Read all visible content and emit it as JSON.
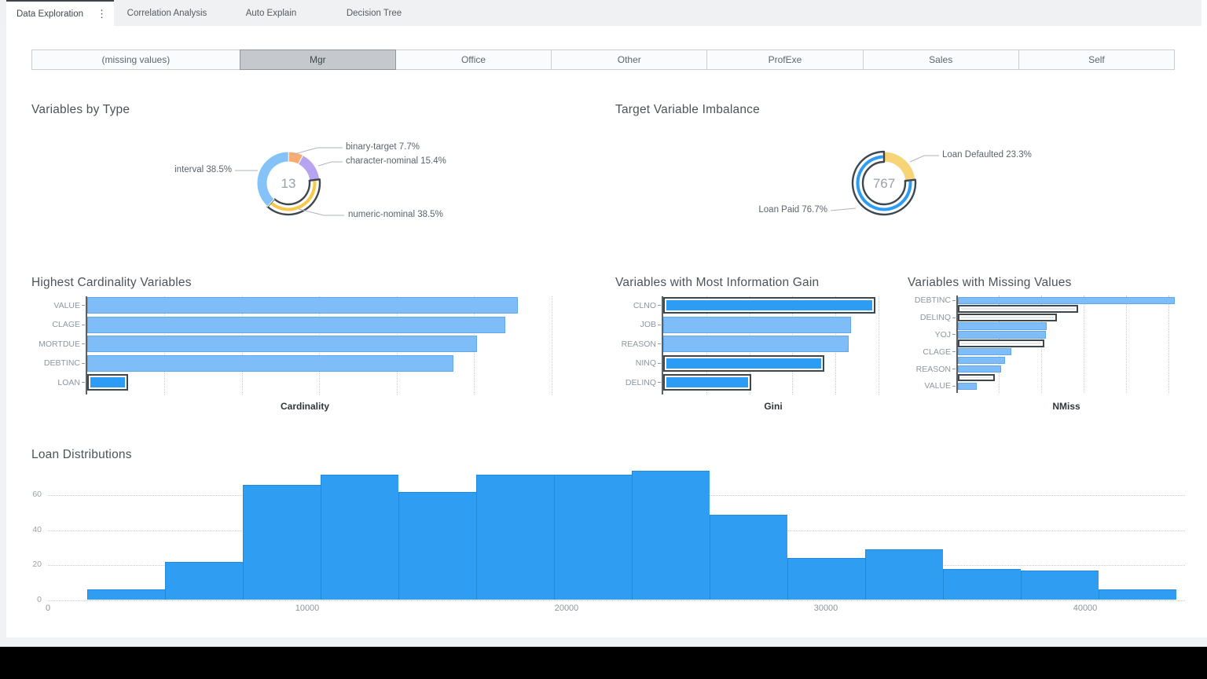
{
  "tabs": [
    {
      "label": "Data Exploration",
      "active": true,
      "has_menu": true
    },
    {
      "label": "Correlation Analysis",
      "active": false
    },
    {
      "label": "Auto Explain",
      "active": false
    },
    {
      "label": "Decision Tree",
      "active": false
    }
  ],
  "filter_buttons": [
    {
      "label": "(missing values)",
      "selected": false
    },
    {
      "label": "Mgr",
      "selected": true
    },
    {
      "label": "Office",
      "selected": false
    },
    {
      "label": "Other",
      "selected": false
    },
    {
      "label": "ProfExe",
      "selected": false
    },
    {
      "label": "Sales",
      "selected": false
    },
    {
      "label": "Self",
      "selected": false
    }
  ],
  "colors": {
    "light_blue_bar": "#7EBDF7",
    "selected_blue": "#2D9CF4",
    "selection_outline": "#3F474E",
    "highlight_gray_fill": "#E4E6E8",
    "histogram_blue": "#2F9DF1",
    "pie_orange": "#F8AC71",
    "pie_purple": "#B6A3F2",
    "pie_yellow": "#F8C74B",
    "pie_light_blue": "#85C2F7",
    "pie_pale_yellow": "#F8D478"
  },
  "chart_data": [
    {
      "id": "variables-by-type",
      "type": "pie",
      "title": "Variables by Type",
      "center_label": "13",
      "slices": [
        {
          "name": "binary-target",
          "pct": 7.7,
          "display": "binary-target 7.7%",
          "color": "#F8AC71",
          "selected": false
        },
        {
          "name": "character-nominal",
          "pct": 15.4,
          "display": "character-nominal 15.4%",
          "color": "#B6A3F2",
          "selected": false
        },
        {
          "name": "numeric-nominal",
          "pct": 38.5,
          "display": "numeric-nominal 38.5%",
          "color": "#F8C74B",
          "selected": true
        },
        {
          "name": "interval",
          "pct": 38.5,
          "display": "interval 38.5%",
          "color": "#85C2F7",
          "selected": false
        }
      ]
    },
    {
      "id": "target-variable-imbalance",
      "type": "pie",
      "title": "Target Variable Imbalance",
      "center_label": "767",
      "slices": [
        {
          "name": "Loan Defaulted",
          "pct": 23.3,
          "display": "Loan Defaulted 23.3%",
          "color": "#F8D478",
          "selected": false
        },
        {
          "name": "Loan Paid",
          "pct": 76.7,
          "display": "Loan Paid 76.7%",
          "color": "#2D9CF4",
          "selected": true
        }
      ]
    },
    {
      "id": "highest-cardinality",
      "type": "bar",
      "title": "Highest Cardinality Variables",
      "xlabel": "Cardinality",
      "axis_note": "no numeric tick labels shown",
      "categories": [
        "VALUE",
        "CLAGE",
        "MORTDUE",
        "DEBTINC",
        "LOAN"
      ],
      "values_relative": [
        0.907,
        0.88,
        0.822,
        0.771,
        0.086
      ],
      "selected": [
        false,
        false,
        false,
        false,
        true
      ]
    },
    {
      "id": "information-gain",
      "type": "bar",
      "title": "Variables with Most Information Gain",
      "xlabel": "Gini",
      "axis_note": "no numeric tick labels shown",
      "categories": [
        "CLNO",
        "JOB",
        "REASON",
        "NINQ",
        "DELINQ"
      ],
      "values_relative": [
        0.96,
        0.85,
        0.84,
        0.73,
        0.4
      ],
      "selected": [
        true,
        false,
        false,
        true,
        true
      ]
    },
    {
      "id": "missing-values",
      "type": "bar",
      "title": "Variables with Missing Values",
      "xlabel": "NMiss",
      "axis_note": "grouped bars, no numeric tick labels shown",
      "categories": [
        "DEBTINC",
        "DELINQ",
        "YOJ",
        "CLAGE",
        "REASON",
        "VALUE"
      ],
      "bars": [
        {
          "category": "DEBTINC",
          "relative": 1.0,
          "style": "plain"
        },
        {
          "category": "DEBTINC",
          "relative": 0.553,
          "style": "highlighted"
        },
        {
          "category": "DELINQ",
          "relative": 0.455,
          "style": "highlighted"
        },
        {
          "category": "DELINQ",
          "relative": 0.409,
          "style": "plain"
        },
        {
          "category": "YOJ",
          "relative": 0.407,
          "style": "plain"
        },
        {
          "category": "YOJ",
          "relative": 0.398,
          "style": "highlighted"
        },
        {
          "category": "CLAGE",
          "relative": 0.245,
          "style": "plain"
        },
        {
          "category": "CLAGE",
          "relative": 0.217,
          "style": "plain"
        },
        {
          "category": "REASON",
          "relative": 0.201,
          "style": "plain"
        },
        {
          "category": "REASON",
          "relative": 0.172,
          "style": "highlighted"
        },
        {
          "category": "VALUE",
          "relative": 0.088,
          "style": "plain"
        }
      ]
    },
    {
      "id": "loan-distributions",
      "type": "histogram",
      "title": "Loan Distributions",
      "xlabel": "",
      "bin_start": 1500,
      "bin_width": 3000,
      "counts": [
        6,
        22,
        66,
        72,
        62,
        72,
        72,
        74,
        49,
        24,
        29,
        18,
        17,
        6
      ],
      "x_tick_labels": [
        "0",
        "10000",
        "20000",
        "30000",
        "40000"
      ],
      "x_tick_values": [
        0,
        10000,
        20000,
        30000,
        40000
      ],
      "y_tick_labels": [
        "0",
        "20",
        "40",
        "60"
      ],
      "y_tick_values": [
        0,
        20,
        40,
        60
      ],
      "ylim": [
        0,
        75
      ]
    }
  ]
}
